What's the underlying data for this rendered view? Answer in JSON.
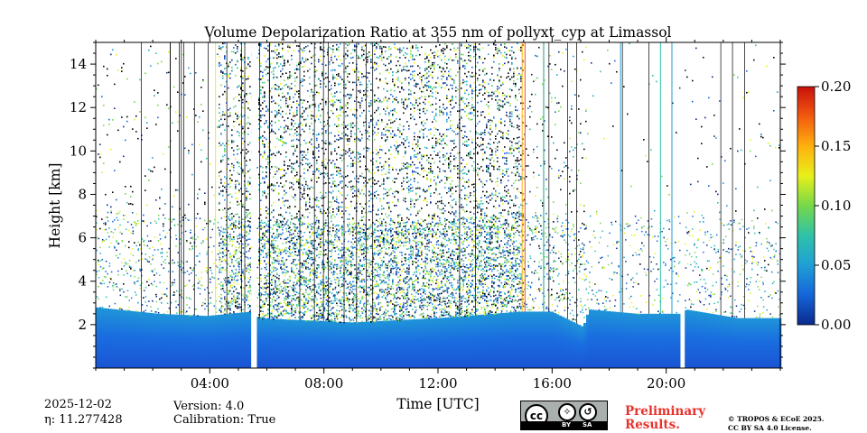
{
  "chart_data": {
    "type": "heatmap",
    "title": "Volume Depolarization Ratio at 355 nm of pollyxt_cyp at Limassol",
    "xlabel": "Time [UTC]",
    "ylabel": "Height [km]",
    "xlim": [
      0,
      24
    ],
    "ylim": [
      0,
      15
    ],
    "x_ticks": [
      4,
      8,
      12,
      16,
      20
    ],
    "x_tick_labels": [
      "04:00",
      "08:00",
      "12:00",
      "16:00",
      "20:00"
    ],
    "y_ticks": [
      2,
      4,
      6,
      8,
      10,
      12,
      14
    ],
    "y_tick_labels": [
      "2",
      "4",
      "6",
      "8",
      "10",
      "12",
      "14"
    ],
    "colorbar": {
      "range": [
        0.0,
        0.2
      ],
      "ticks": [
        0.0,
        0.05,
        0.1,
        0.15,
        0.2
      ],
      "tick_labels": [
        "0.00",
        "0.05",
        "0.10",
        "0.15",
        "0.20"
      ],
      "colormap": [
        "#0a2a8c",
        "#1565d8",
        "#1f9fd6",
        "#2fc2a8",
        "#76d84a",
        "#e8f01a",
        "#ffb00e",
        "#f25a0f",
        "#c8100c"
      ]
    },
    "data_gaps_hours": [
      [
        5.45,
        5.65
      ],
      [
        20.5,
        20.65
      ]
    ],
    "boundary_layer_top_km": [
      [
        0.0,
        2.8
      ],
      [
        2.2,
        2.5
      ],
      [
        3.9,
        2.4
      ],
      [
        5.45,
        2.6
      ],
      [
        5.7,
        2.3
      ],
      [
        9.0,
        2.1
      ],
      [
        12.0,
        2.3
      ],
      [
        14.9,
        2.6
      ],
      [
        16.0,
        2.6
      ],
      [
        17.1,
        1.9
      ],
      [
        17.3,
        2.7
      ],
      [
        19.0,
        2.5
      ],
      [
        20.5,
        2.5
      ],
      [
        20.7,
        2.7
      ],
      [
        22.5,
        2.3
      ],
      [
        24.0,
        2.3
      ]
    ],
    "noise_regions": [
      {
        "t0": 0.0,
        "t1": 4.0,
        "density": 0.07
      },
      {
        "t0": 4.3,
        "t1": 5.45,
        "density": 0.5
      },
      {
        "t0": 5.65,
        "t1": 15.0,
        "density": 0.6
      },
      {
        "t0": 15.0,
        "t1": 17.2,
        "density": 0.12
      },
      {
        "t0": 17.2,
        "t1": 20.5,
        "density": 0.02
      },
      {
        "t0": 20.65,
        "t1": 24.0,
        "density": 0.04
      }
    ],
    "vertical_streaks_hours": [
      {
        "t": 4.2,
        "color": "#e8f01a"
      },
      {
        "t": 14.95,
        "color": "#ffb00e"
      },
      {
        "t": 15.05,
        "color": "#f25a0f"
      },
      {
        "t": 15.7,
        "color": "#2fc2a8"
      },
      {
        "t": 18.4,
        "color": "#1f9fd6"
      },
      {
        "t": 19.8,
        "color": "#2fc2a8"
      },
      {
        "t": 20.2,
        "color": "#1f9fd6"
      }
    ]
  },
  "footer": {
    "date": "2025-12-02",
    "eta": "η: 11.277428",
    "version": "Version: 4.0",
    "calibration": "Calibration: True",
    "prelim_line1": "Preliminary",
    "prelim_line2": "Results.",
    "copyright_line1": "© TROPOS & ECoE 2025.",
    "copyright_line2": "CC BY SA 4.0 License.",
    "cc_badge": {
      "cc": "cc",
      "by": "BY",
      "sa": "SA"
    }
  }
}
